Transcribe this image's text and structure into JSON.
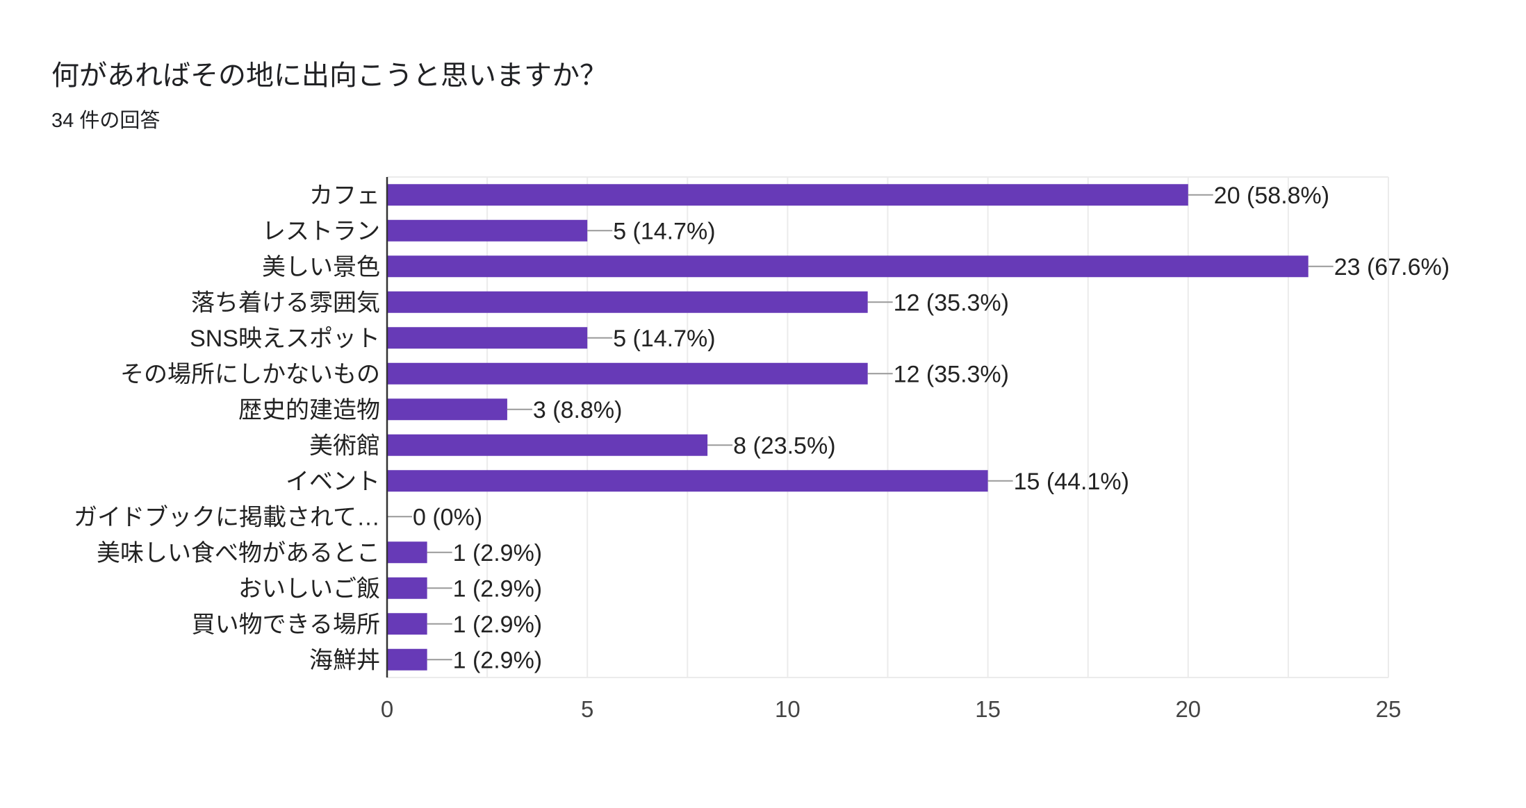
{
  "title": "何があればその地に出向こうと思いますか？",
  "subtitle": "34 件の回答",
  "colors": {
    "bar": "#673ab7",
    "grid": "#ebebeb",
    "axis": "#333333",
    "leader": "#999999"
  },
  "chart_data": {
    "type": "bar",
    "orientation": "horizontal",
    "title": "何があればその地に出向こうと思いますか？",
    "categories": [
      "カフェ",
      "レストラン",
      "美しい景色",
      "落ち着ける雰囲気",
      "SNS映えスポット",
      "その場所にしかないもの",
      "歴史的建造物",
      "美術館",
      "イベント",
      "ガイドブックに掲載されて…",
      "美味しい食べ物があるとこ",
      "おいしいご飯",
      "買い物できる場所",
      "海鮮丼"
    ],
    "values": [
      20,
      5,
      23,
      12,
      5,
      12,
      3,
      8,
      15,
      0,
      1,
      1,
      1,
      1
    ],
    "data_labels": [
      "20 (58.8%)",
      "5 (14.7%)",
      "23 (67.6%)",
      "12 (35.3%)",
      "5 (14.7%)",
      "12 (35.3%)",
      "3 (8.8%)",
      "8 (23.5%)",
      "15 (44.1%)",
      "0 (0%)",
      "1 (2.9%)",
      "1 (2.9%)",
      "1 (2.9%)",
      "1 (2.9%)"
    ],
    "xlim": [
      0,
      25
    ],
    "xticks": [
      "0",
      "5",
      "10",
      "15",
      "20",
      "25"
    ],
    "grid": true,
    "xlabel": "",
    "ylabel": ""
  }
}
